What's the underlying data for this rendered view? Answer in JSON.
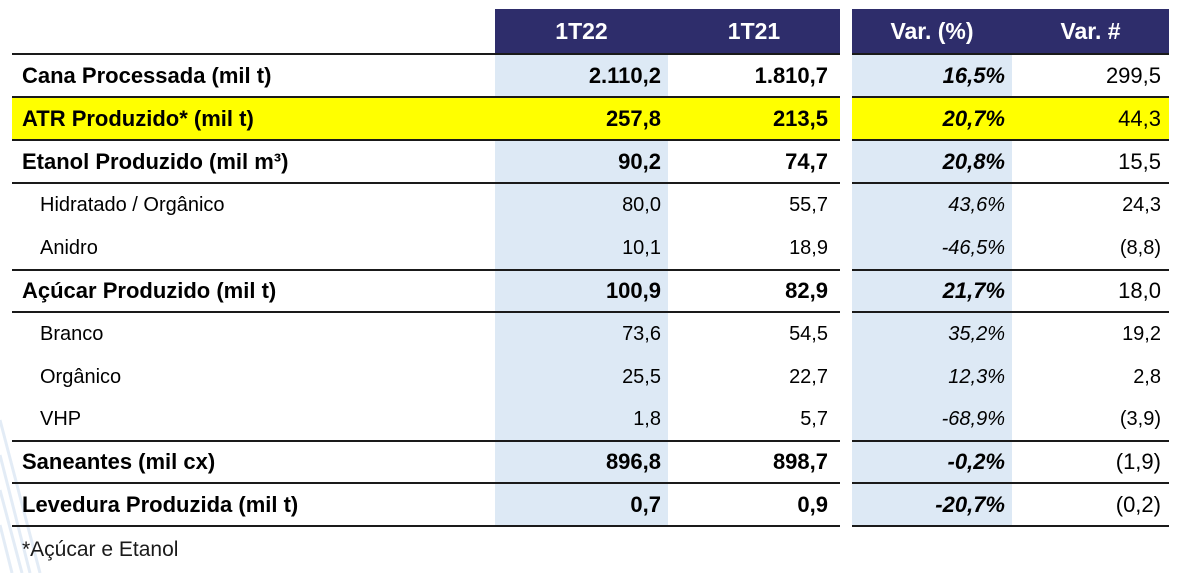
{
  "table": {
    "headers": [
      "1T22",
      "1T21",
      "Var. (%)",
      "Var. #"
    ],
    "rows": [
      {
        "label": "Cana Processada (mil t)",
        "v1": "2.110,2",
        "v2": "1.810,7",
        "pct": "16,5%",
        "abs": "299,5"
      },
      {
        "label": "ATR Produzido* (mil t)",
        "v1": "257,8",
        "v2": "213,5",
        "pct": "20,7%",
        "abs": "44,3"
      },
      {
        "label": "Etanol Produzido (mil m³)",
        "v1": "90,2",
        "v2": "74,7",
        "pct": "20,8%",
        "abs": "15,5"
      },
      {
        "label": "Hidratado / Orgânico",
        "v1": "80,0",
        "v2": "55,7",
        "pct": "43,6%",
        "abs": "24,3"
      },
      {
        "label": "Anidro",
        "v1": "10,1",
        "v2": "18,9",
        "pct": "-46,5%",
        "abs": "(8,8)"
      },
      {
        "label": "Açúcar Produzido (mil t)",
        "v1": "100,9",
        "v2": "82,9",
        "pct": "21,7%",
        "abs": "18,0"
      },
      {
        "label": "Branco",
        "v1": "73,6",
        "v2": "54,5",
        "pct": "35,2%",
        "abs": "19,2"
      },
      {
        "label": "Orgânico",
        "v1": "25,5",
        "v2": "22,7",
        "pct": "12,3%",
        "abs": "2,8"
      },
      {
        "label": "VHP",
        "v1": "1,8",
        "v2": "5,7",
        "pct": "-68,9%",
        "abs": "(3,9)"
      },
      {
        "label": "Saneantes (mil cx)",
        "v1": "896,8",
        "v2": "898,7",
        "pct": "-0,2%",
        "abs": "(1,9)"
      },
      {
        "label": "Levedura Produzida (mil t)",
        "v1": "0,7",
        "v2": "0,9",
        "pct": "-20,7%",
        "abs": "(0,2)"
      }
    ]
  },
  "footnote": "*Açúcar e Etanol",
  "colors": {
    "header_bg": "#2e2d6b",
    "column_bg": "#dde9f5",
    "highlight": "#ffff00"
  }
}
